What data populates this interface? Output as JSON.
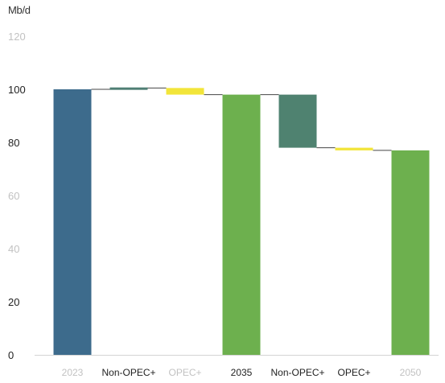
{
  "chart_data": {
    "type": "waterfall",
    "ylabel": "Mb/d",
    "ylim": [
      0,
      120
    ],
    "yticks": [
      0,
      20,
      40,
      60,
      80,
      100,
      120
    ],
    "categories": [
      "2023",
      "Non-OPEC+",
      "OPEC+",
      "2035",
      "Non-OPEC+",
      "OPEC+",
      "2050"
    ],
    "bars": [
      {
        "label": "2023",
        "kind": "total",
        "start": 0,
        "end": 100,
        "color": "#3d6b8c"
      },
      {
        "label": "Non-OPEC+",
        "kind": "change",
        "start": 100,
        "end": 100.5,
        "color": "#4f7f74"
      },
      {
        "label": "OPEC+",
        "kind": "change",
        "start": 100.5,
        "end": 98,
        "color": "#f2e53a"
      },
      {
        "label": "2035",
        "kind": "total",
        "start": 0,
        "end": 98,
        "color": "#6db04e"
      },
      {
        "label": "Non-OPEC+",
        "kind": "change",
        "start": 98,
        "end": 78,
        "color": "#4f8270"
      },
      {
        "label": "OPEC+",
        "kind": "change",
        "start": 78,
        "end": 77,
        "color": "#f2e53a"
      },
      {
        "label": "2050",
        "kind": "total",
        "start": 0,
        "end": 77,
        "color": "#6db04e"
      }
    ],
    "tick_label_colors": {
      "strong": "#222222",
      "faded": "#c2c2c2"
    },
    "faded_category_labels": [
      0,
      2,
      6
    ],
    "faded_y_ticks": [
      40,
      60,
      120
    ],
    "grid": false
  }
}
